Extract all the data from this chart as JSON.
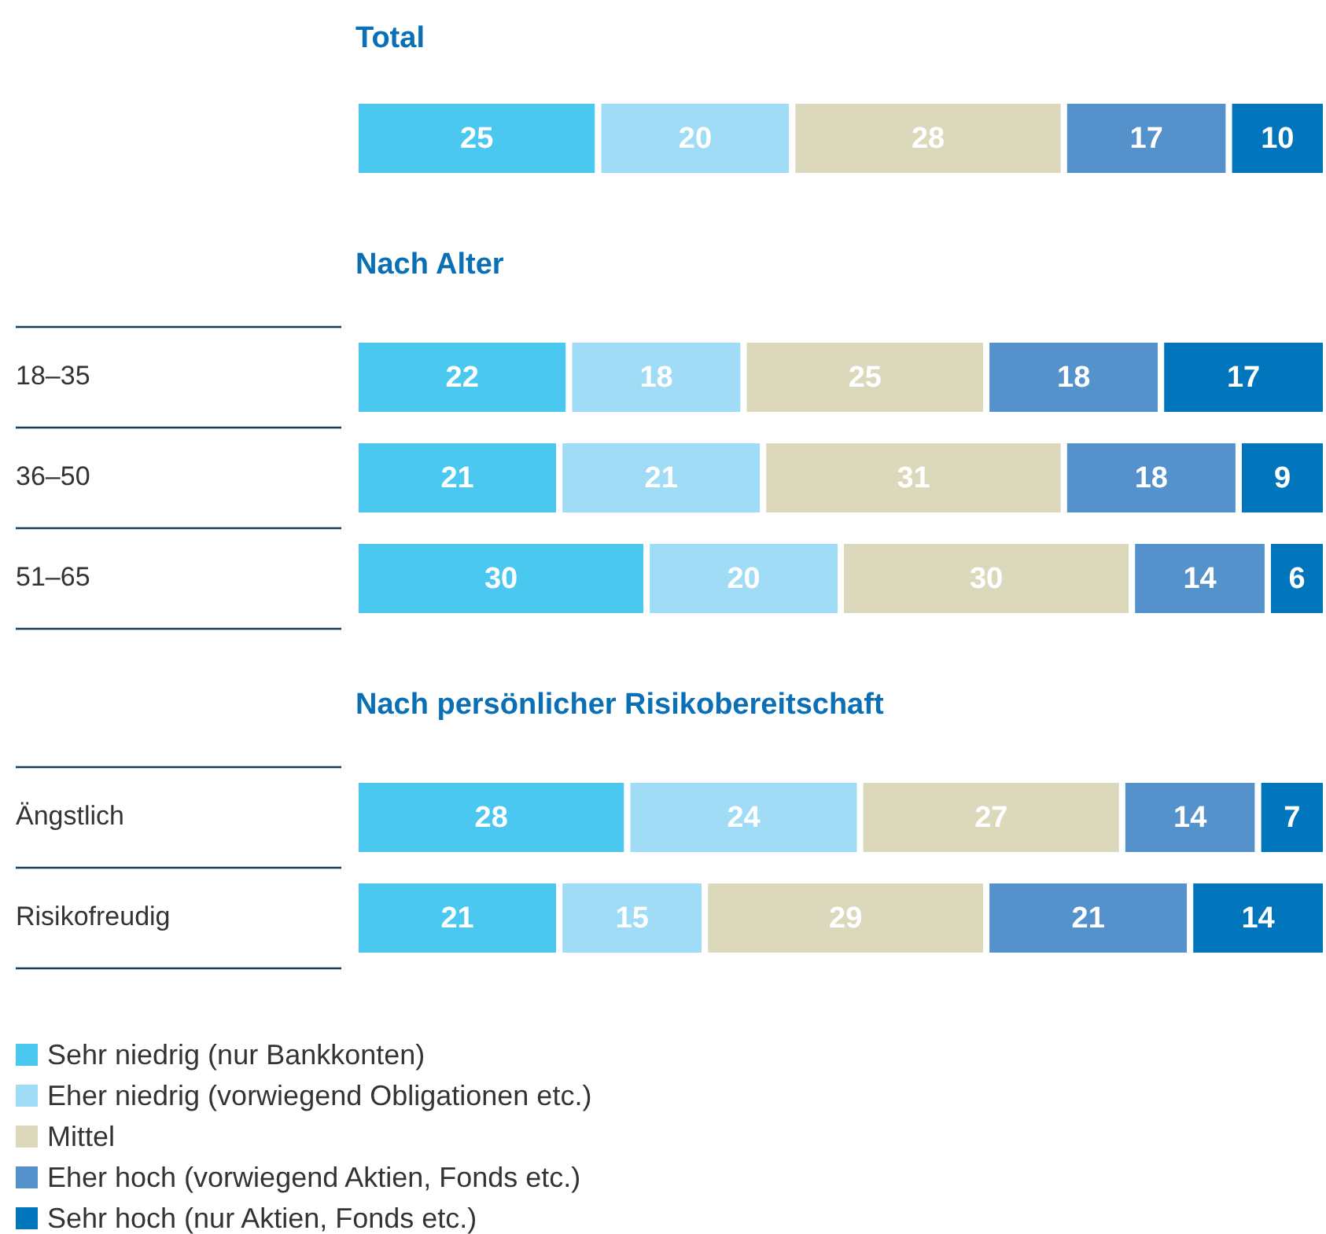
{
  "chart_data": [
    {
      "type": "bar",
      "orientation": "horizontal",
      "stacked": true,
      "data_labels": true,
      "title": "Total",
      "categories": [
        null
      ],
      "series": [
        {
          "color": "#4bc8f0",
          "values": [
            25
          ]
        },
        {
          "color": "#a0dcf5",
          "values": [
            20
          ]
        },
        {
          "color": "#dcd8bc",
          "values": [
            28
          ]
        },
        {
          "color": "#5592cc",
          "values": [
            17
          ]
        },
        {
          "color": "#0075bc",
          "values": [
            10
          ]
        }
      ]
    },
    {
      "type": "bar",
      "orientation": "horizontal",
      "stacked": true,
      "data_labels": true,
      "title": "Nach Alter",
      "categories": [
        "18–35",
        "36–50",
        "51–65"
      ],
      "series": [
        {
          "color": "#4bc8f0",
          "values": [
            22,
            21,
            30
          ]
        },
        {
          "color": "#a0dcf5",
          "values": [
            18,
            21,
            20
          ]
        },
        {
          "color": "#dcd8bc",
          "values": [
            25,
            31,
            30
          ]
        },
        {
          "color": "#5592cc",
          "values": [
            18,
            18,
            14
          ]
        },
        {
          "color": "#0075bc",
          "values": [
            17,
            9,
            6
          ]
        }
      ]
    },
    {
      "type": "bar",
      "orientation": "horizontal",
      "stacked": true,
      "data_labels": true,
      "title": "Nach persönlicher Risikobereitschaft",
      "categories": [
        "Ängstlich",
        "Risikofreudig"
      ],
      "legend": "bottom",
      "series": [
        {
          "name": "Sehr niedrig (nur Bankkonten)",
          "color": "#4bc8f0",
          "values": [
            28,
            21
          ]
        },
        {
          "name": "Eher niedrig (vorwiegend Obligationen etc.)",
          "color": "#a0dcf5",
          "values": [
            24,
            15
          ]
        },
        {
          "name": "Mittel",
          "color": "#dcd8bc",
          "values": [
            27,
            29
          ]
        },
        {
          "name": "Eher hoch (vorwiegend Aktien, Fonds etc.)",
          "color": "#5592cc",
          "values": [
            14,
            21
          ]
        },
        {
          "name": "Sehr hoch (nur Aktien, Fonds etc.)",
          "color": "#0075bc",
          "values": [
            7,
            14
          ]
        }
      ]
    }
  ]
}
